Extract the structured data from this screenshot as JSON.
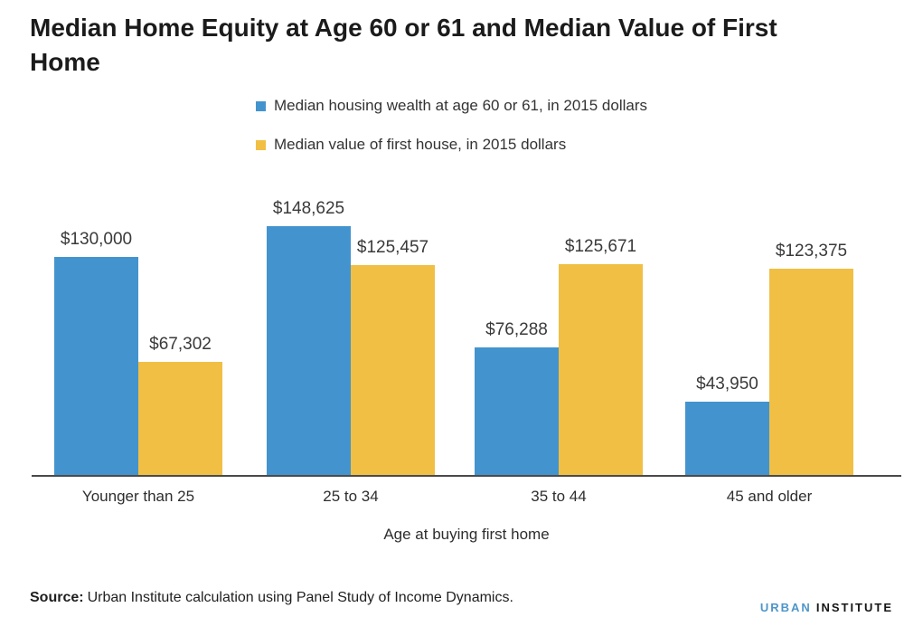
{
  "chart_data": {
    "type": "bar",
    "title": "Median Home Equity at Age 60 or 61 and Median Value of First Home",
    "categories": [
      "Younger than 25",
      "25 to 34",
      "35 to 44",
      "45 and older"
    ],
    "series": [
      {
        "id": "housing-wealth",
        "name": "Median housing wealth at age 60 or 61, in 2015 dollars",
        "color": "#4394ce",
        "values": [
          130000,
          148625,
          76288,
          43950
        ],
        "labels": [
          "$130,000",
          "$148,625",
          "$76,288",
          "$43,950"
        ]
      },
      {
        "id": "first-house-value",
        "name": "Median value of first house, in 2015 dollars",
        "color": "#f0bf44",
        "values": [
          67302,
          125457,
          125671,
          123375
        ],
        "labels": [
          "$67,302",
          "$125,457",
          "$125,671",
          "$123,375"
        ]
      }
    ],
    "xlabel": "Age at buying first home",
    "ylabel": "",
    "ylim": [
      0,
      160000
    ],
    "grid": false,
    "y_axis_visible": false,
    "value_labels": true,
    "legend_position": "top-center"
  },
  "footer": {
    "source_label": "Source:",
    "source_text": "Urban Institute calculation using Panel Study of Income Dynamics.",
    "logo_urban": "URBAN",
    "logo_institute": "INSTITUTE"
  },
  "colors": {
    "bar_blue": "#4394ce",
    "bar_yellow": "#f0bf44",
    "axis_line": "#4a4a4a",
    "logo_blue": "#4e96c9",
    "title_text": "#1b1b1b"
  }
}
